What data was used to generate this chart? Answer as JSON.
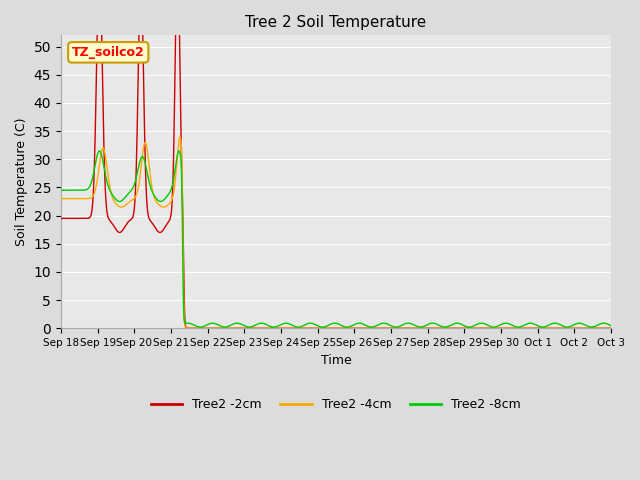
{
  "title": "Tree 2 Soil Temperature",
  "xlabel": "Time",
  "ylabel": "Soil Temperature (C)",
  "ylim": [
    0,
    52
  ],
  "yticks": [
    0,
    5,
    10,
    15,
    20,
    25,
    30,
    35,
    40,
    45,
    50
  ],
  "background_color": "#dcdcdc",
  "plot_bg_color": "#e8e8e8",
  "legend_label": "TZ_soilco2",
  "legend_box_color": "#ffffcc",
  "legend_box_edge": "#cc9900",
  "colors": {
    "2cm": "#cc0000",
    "4cm": "#ffaa00",
    "8cm": "#00cc00"
  },
  "x_tick_labels": [
    "Sep 18",
    "Sep 19",
    "Sep 20",
    "Sep 21",
    "Sep 22",
    "Sep 23",
    "Sep 24",
    "Sep 25",
    "Sep 26",
    "Sep 27",
    "Sep 28",
    "Sep 29",
    "Sep 30",
    "Oct 1",
    "Oct 2",
    "Oct 3"
  ],
  "series_labels": [
    "Tree2 -2cm",
    "Tree2 -4cm",
    "Tree2 -8cm"
  ]
}
